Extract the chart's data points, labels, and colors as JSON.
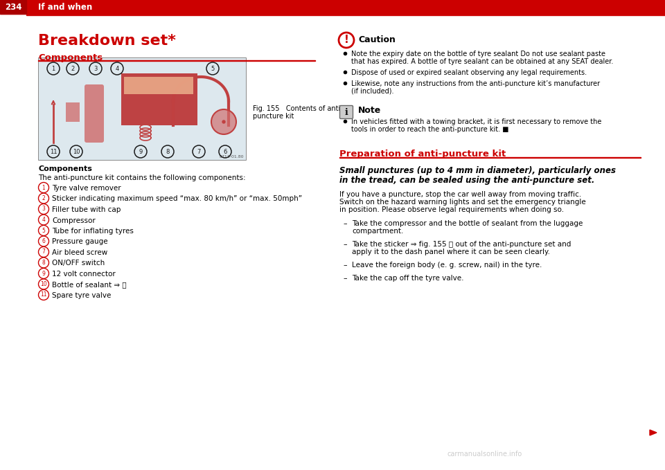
{
  "page_number": "234",
  "header_text": "If and when",
  "header_bg": "#cc0000",
  "header_text_color": "#ffffff",
  "header_line_color": "#cc0000",
  "bg_color": "#ffffff",
  "title": "Breakdown set*",
  "title_color": "#cc0000",
  "section1_heading": "Components",
  "section1_heading_color": "#cc0000",
  "components_bold_heading": "Components",
  "components_intro": "The anti-puncture kit contains the following components:",
  "components_list": [
    "Tyre valve remover",
    "Sticker indicating maximum speed “max. 80 km/h” or “max. 50mph”",
    "Filler tube with cap",
    "Compressor",
    "Tube for inflating tyres",
    "Pressure gauge",
    "Air bleed screw",
    "ON/OFF switch",
    "12 volt connector",
    "Bottle of sealant ⇒ ⓘ",
    "Spare tyre valve"
  ],
  "fig_caption_line1": "Fig. 155   Contents of anti-",
  "fig_caption_line2": "puncture kit",
  "caution_title": "Caution",
  "caution_bullets": [
    "Note the expiry date on the bottle of tyre sealant Do not use sealant paste that has expired. A bottle of tyre sealant can be obtained at any SEAT dealer.",
    "Dispose of used or expired sealant observing any legal requirements.",
    "Likewise, note any instructions from the anti-puncture kit’s manufacturer (if included)."
  ],
  "note_title": "Note",
  "note_bullets": [
    "In vehicles fitted with a towing bracket, it is first necessary to remove the tools in order to reach the anti-puncture kit. ■"
  ],
  "prep_heading": "Preparation of anti-puncture kit",
  "prep_heading_color": "#cc0000",
  "prep_italic_line1": "Small punctures (up to 4 mm in diameter), particularly ones",
  "prep_italic_line2": "in the tread, can be sealed using the anti-puncture set.",
  "prep_body_line1": "If you have a puncture, stop the car well away from moving traffic.",
  "prep_body_line2": "Switch on the hazard warning lights and set the emergency triangle",
  "prep_body_line3": "in position. Please observe legal requirements when doing so.",
  "prep_steps": [
    "Take the compressor and the bottle of sealant from the luggage\ncompartment.",
    "Take the sticker ⇒ fig. 155 Ⓐ out of the anti-puncture set and\napply it to the dash panel where it can be seen clearly.",
    "Leave the foreign body (e. g. screw, nail) in the tyre.",
    "Take the cap off the tyre valve."
  ],
  "arrow_color": "#cc0000",
  "text_color": "#000000",
  "watermark": "carmanualsonline.info",
  "img_bg": "#dde8ee",
  "img_border": "#888888"
}
